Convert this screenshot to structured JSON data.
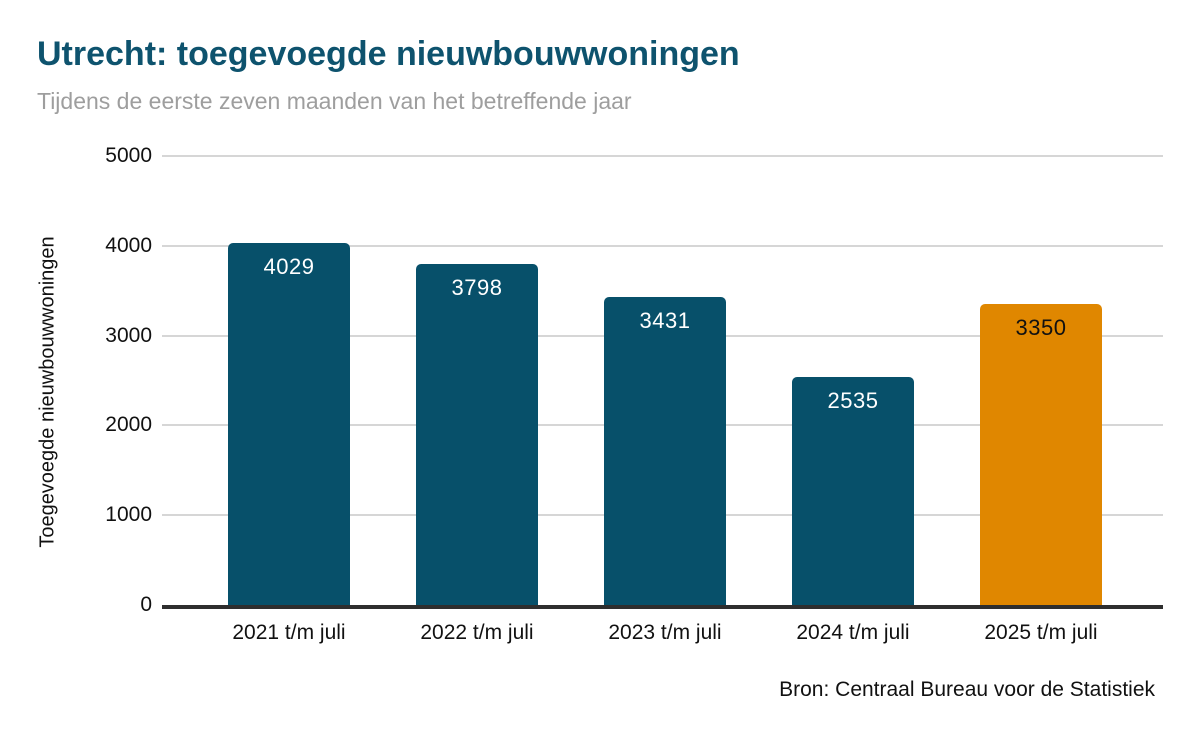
{
  "header": {
    "title": "Utrecht: toegevoegde nieuwbouwwoningen",
    "subtitle": "Tijdens de eerste zeven maanden van het betreffende jaar"
  },
  "chart_data": {
    "type": "bar",
    "title": "Utrecht: toegevoegde nieuwbouwwoningen",
    "subtitle": "Tijdens de eerste zeven maanden van het betreffende jaar",
    "categories": [
      "2021 t/m juli",
      "2022 t/m juli",
      "2023 t/m juli",
      "2024 t/m juli",
      "2025 t/m juli"
    ],
    "values": [
      4029,
      3798,
      3431,
      2535,
      3350
    ],
    "xlabel": "",
    "ylabel": "Toegevoegde nieuwbouwwoningen",
    "ylim": [
      0,
      5000
    ],
    "yticks": [
      0,
      1000,
      2000,
      3000,
      4000,
      5000
    ],
    "grid": true,
    "legend_position": "none",
    "bar_colors": [
      "#07506A",
      "#07506A",
      "#07506A",
      "#07506A",
      "#E08700"
    ],
    "value_label_colors": [
      "#FFFFFF",
      "#FFFFFF",
      "#FFFFFF",
      "#FFFFFF",
      "#111111"
    ],
    "highlight_index": 4
  },
  "footer": {
    "source": "Bron: Centraal Bureau voor de Statistiek"
  },
  "colors": {
    "title": "#0E536E",
    "subtitle": "#9E9E9E",
    "bar_default": "#07506A",
    "bar_highlight": "#E08700",
    "gridline": "#D6D6D6",
    "axis_line": "#2E2E2E",
    "background": "#FFFFFF"
  }
}
